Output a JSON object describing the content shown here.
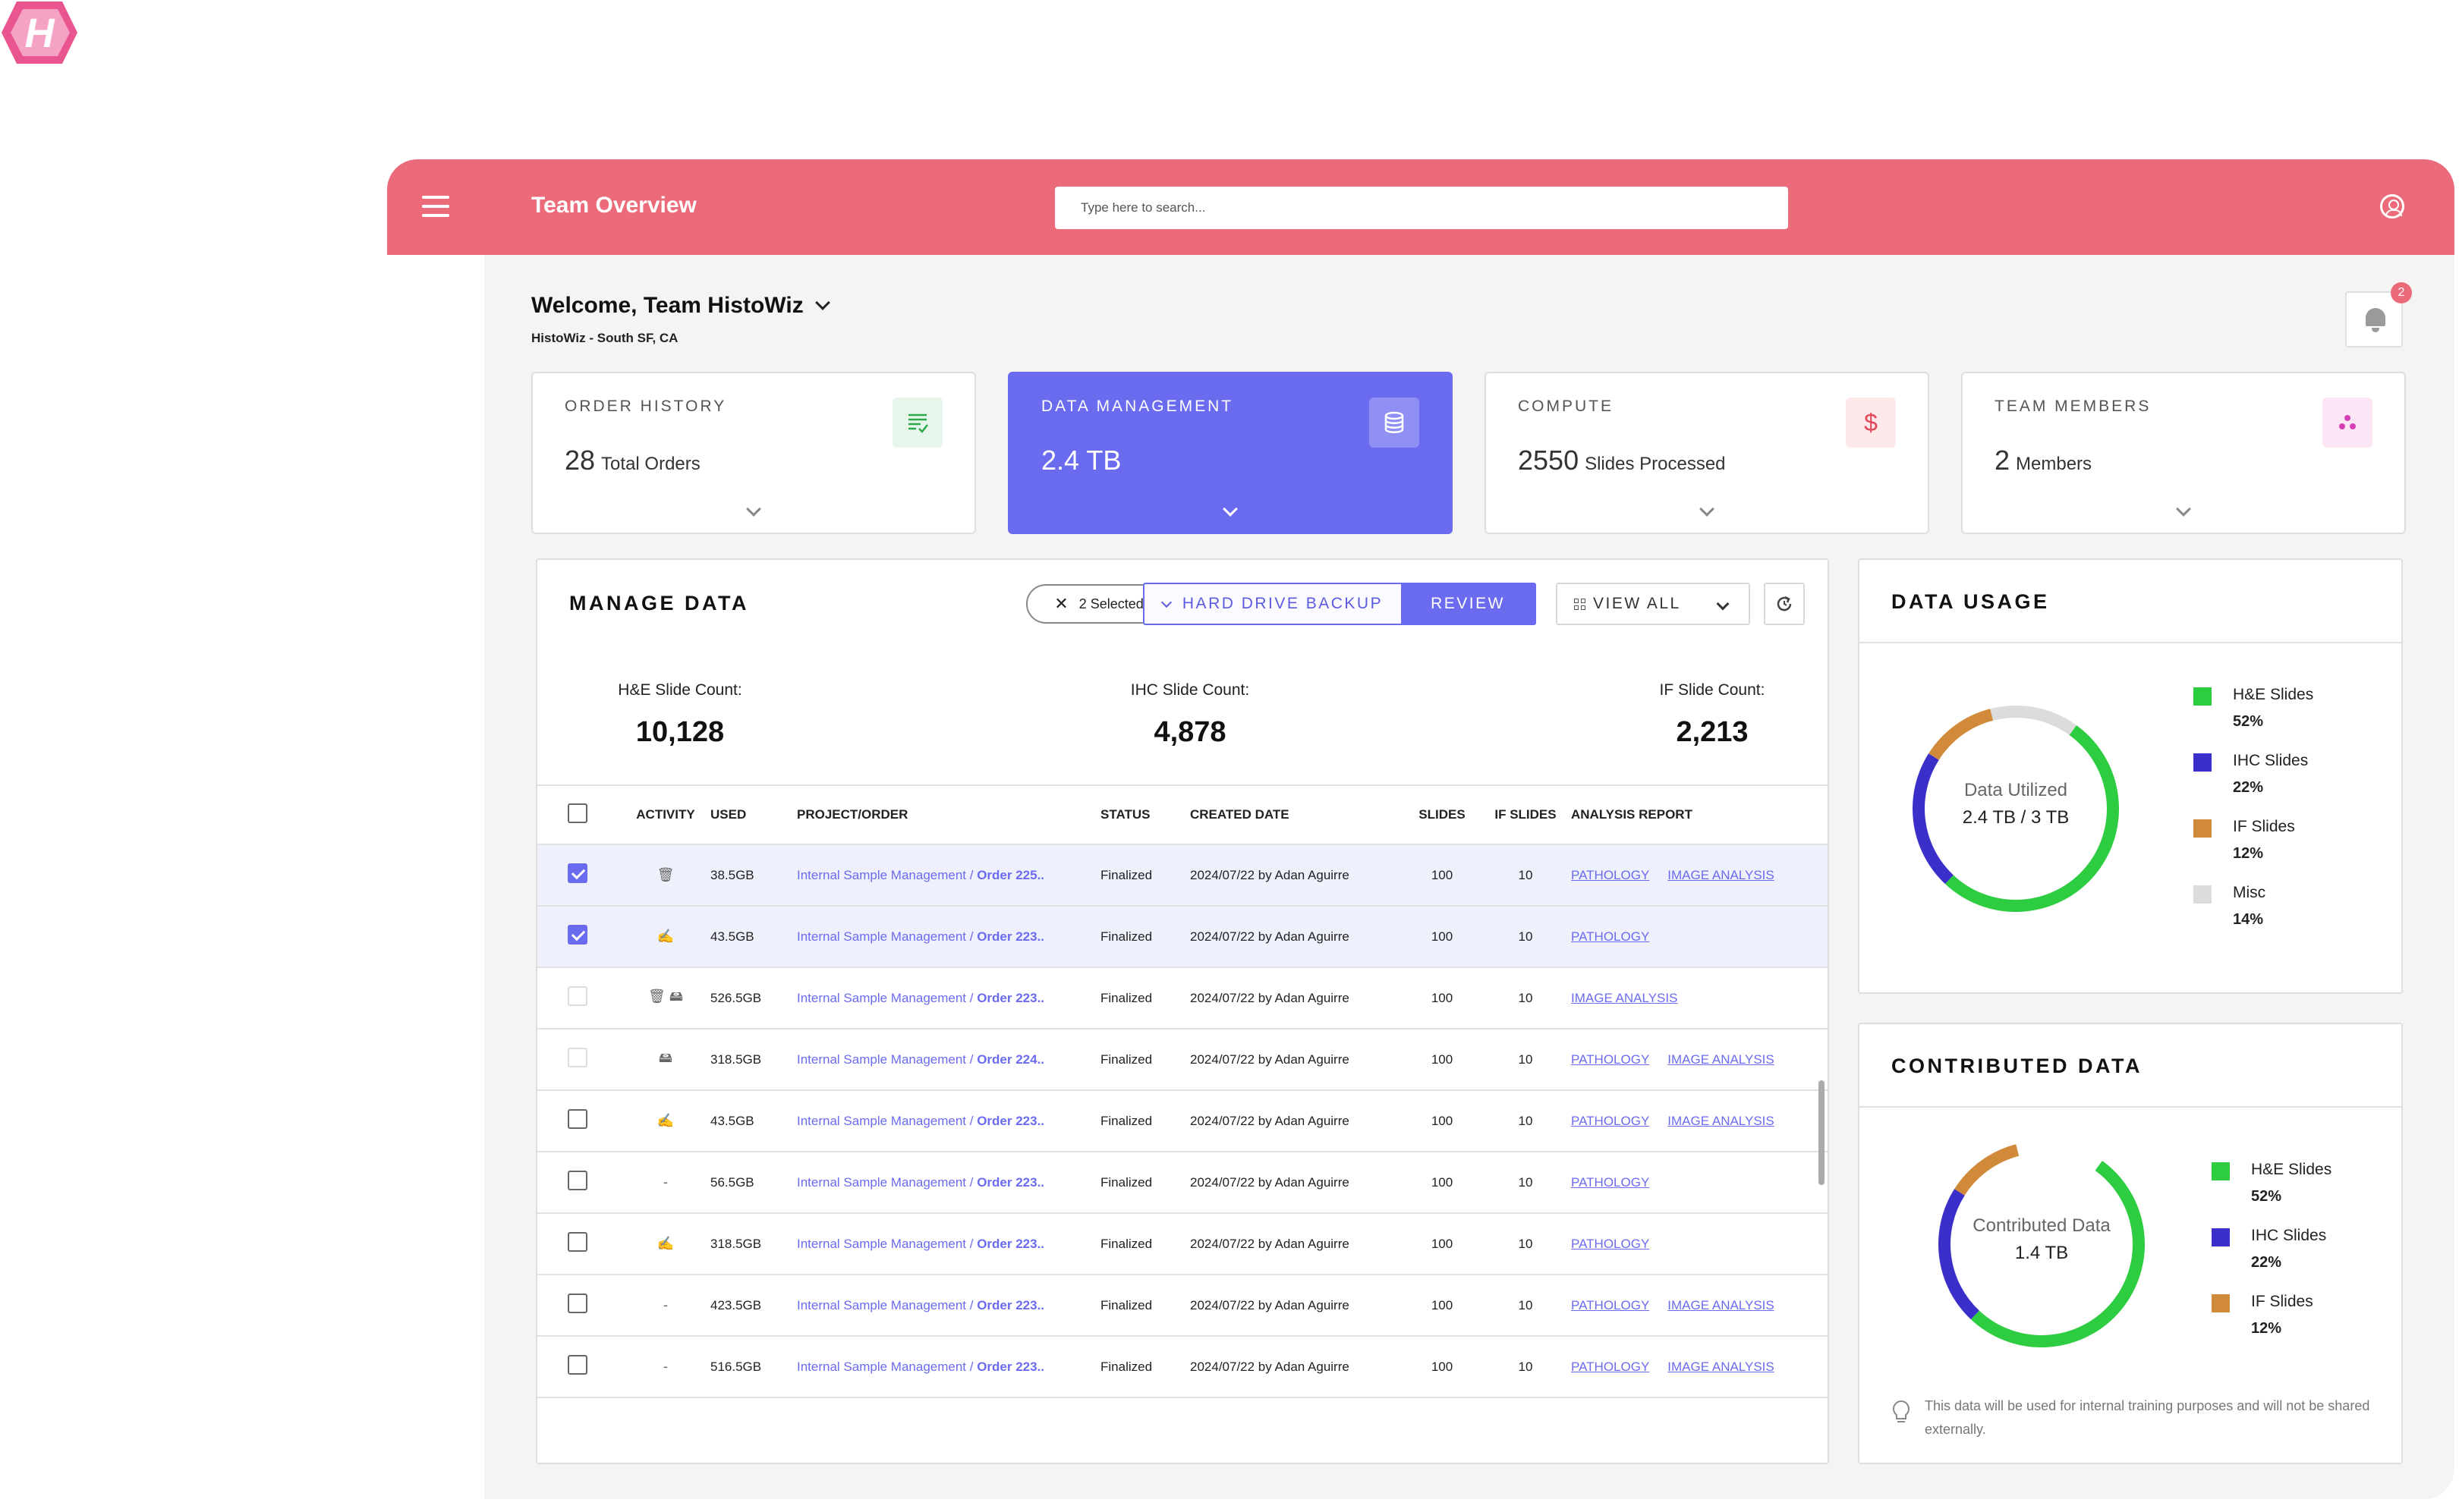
{
  "app": {
    "title": "Team Overview",
    "search_placeholder": "Type here to search..."
  },
  "welcome": {
    "title": "Welcome, Team HistoWiz",
    "location": "HistoWiz - South SF, CA",
    "notifications": "2"
  },
  "cards": [
    {
      "title": "ORDER HISTORY",
      "value": "28",
      "unit": "Total Orders",
      "icon": "list-check-icon",
      "icon_color": "#2ea84a",
      "icon_bg": "#e6f6ea"
    },
    {
      "title": "DATA MANAGEMENT",
      "value": "2.4 TB",
      "unit": "",
      "icon": "database-icon",
      "icon_color": "#ffffff",
      "icon_bg": "#8f8ff4"
    },
    {
      "title": "COMPUTE",
      "value": "2550",
      "unit": "Slides Processed",
      "icon": "dollar-icon",
      "icon_color": "#e2475a",
      "icon_bg": "#fde8ea"
    },
    {
      "title": "TEAM MEMBERS",
      "value": "2",
      "unit": "Members",
      "icon": "team-icon",
      "icon_color": "#d63fb5",
      "icon_bg": "#fbe6f6"
    }
  ],
  "manage": {
    "title": "MANAGE DATA",
    "selected_chip": "2 Selected",
    "backup_label": "HARD DRIVE BACKUP",
    "review_label": "REVIEW",
    "view_label": "VIEW ALL",
    "stats": [
      {
        "label": "H&E Slide Count:",
        "value": "10,128"
      },
      {
        "label": "IHC Slide Count:",
        "value": "4,878"
      },
      {
        "label": "IF Slide Count:",
        "value": "2,213"
      }
    ],
    "columns": [
      "ACTIVITY",
      "USED",
      "PROJECT/ORDER",
      "STATUS",
      "CREATED DATE",
      "SLIDES",
      "IF SLIDES",
      "ANALYSIS REPORT"
    ],
    "rows": [
      {
        "checked": true,
        "disabled": false,
        "activity": "🗑",
        "used": "38.5GB",
        "project": "Internal Sample Management /",
        "order": "Order 225..",
        "status": "Finalized",
        "date": "2024/07/22 by Adan Aguirre",
        "slides": "100",
        "if_slides": "10",
        "reports": [
          "PATHOLOGY",
          "IMAGE ANALYSIS"
        ]
      },
      {
        "checked": true,
        "disabled": false,
        "activity": "✍",
        "used": "43.5GB",
        "project": "Internal Sample Management /",
        "order": "Order 223..",
        "status": "Finalized",
        "date": "2024/07/22 by Adan Aguirre",
        "slides": "100",
        "if_slides": "10",
        "reports": [
          "PATHOLOGY"
        ]
      },
      {
        "checked": false,
        "disabled": true,
        "activity": "🗑 🖴",
        "used": "526.5GB",
        "project": "Internal Sample Management /",
        "order": "Order 223..",
        "status": "Finalized",
        "date": "2024/07/22 by Adan Aguirre",
        "slides": "100",
        "if_slides": "10",
        "reports": [
          "IMAGE ANALYSIS"
        ]
      },
      {
        "checked": false,
        "disabled": true,
        "activity": "🖴",
        "used": "318.5GB",
        "project": "Internal Sample Management /",
        "order": "Order 224..",
        "status": "Finalized",
        "date": "2024/07/22 by Adan Aguirre",
        "slides": "100",
        "if_slides": "10",
        "reports": [
          "PATHOLOGY",
          "IMAGE ANALYSIS"
        ]
      },
      {
        "checked": false,
        "disabled": false,
        "activity": "✍",
        "used": "43.5GB",
        "project": "Internal Sample Management /",
        "order": "Order 223..",
        "status": "Finalized",
        "date": "2024/07/22 by Adan Aguirre",
        "slides": "100",
        "if_slides": "10",
        "reports": [
          "PATHOLOGY",
          "IMAGE ANALYSIS"
        ]
      },
      {
        "checked": false,
        "disabled": false,
        "activity": "-",
        "used": "56.5GB",
        "project": "Internal Sample Management /",
        "order": "Order 223..",
        "status": "Finalized",
        "date": "2024/07/22 by Adan Aguirre",
        "slides": "100",
        "if_slides": "10",
        "reports": [
          "PATHOLOGY"
        ]
      },
      {
        "checked": false,
        "disabled": false,
        "activity": "✍",
        "used": "318.5GB",
        "project": "Internal Sample Management /",
        "order": "Order 223..",
        "status": "Finalized",
        "date": "2024/07/22 by Adan Aguirre",
        "slides": "100",
        "if_slides": "10",
        "reports": [
          "PATHOLOGY"
        ]
      },
      {
        "checked": false,
        "disabled": false,
        "activity": "-",
        "used": "423.5GB",
        "project": "Internal Sample Management /",
        "order": "Order 223..",
        "status": "Finalized",
        "date": "2024/07/22 by Adan Aguirre",
        "slides": "100",
        "if_slides": "10",
        "reports": [
          "PATHOLOGY",
          "IMAGE ANALYSIS"
        ]
      },
      {
        "checked": false,
        "disabled": false,
        "activity": "-",
        "used": "516.5GB",
        "project": "Internal Sample Management /",
        "order": "Order 223..",
        "status": "Finalized",
        "date": "2024/07/22 by Adan Aguirre",
        "slides": "100",
        "if_slides": "10",
        "reports": [
          "PATHOLOGY",
          "IMAGE ANALYSIS"
        ]
      }
    ]
  },
  "usage": {
    "title": "DATA USAGE",
    "center_line1": "Data Utilized",
    "center_line2": "2.4 TB / 3 TB",
    "segments": [
      {
        "name": "H&E Slides",
        "pct": "52%",
        "value": 52,
        "color": "#2ecc40"
      },
      {
        "name": "IHC Slides",
        "pct": "22%",
        "value": 22,
        "color": "#3b2fc9"
      },
      {
        "name": "IF Slides",
        "pct": "12%",
        "value": 12,
        "color": "#d08a3a"
      },
      {
        "name": "Misc",
        "pct": "14%",
        "value": 14,
        "color": "#dcdcdc"
      }
    ]
  },
  "contributed": {
    "title": "CONTRIBUTED DATA",
    "center_line1": "Contributed Data",
    "center_line2": "1.4 TB",
    "segments": [
      {
        "name": "H&E Slides",
        "pct": "52%",
        "value": 52,
        "color": "#2ecc40"
      },
      {
        "name": "IHC Slides",
        "pct": "22%",
        "value": 22,
        "color": "#3b2fc9"
      },
      {
        "name": "IF Slides",
        "pct": "12%",
        "value": 12,
        "color": "#d08a3a"
      }
    ],
    "note": "This data will be used for internal training purposes and will not be shared externally."
  }
}
